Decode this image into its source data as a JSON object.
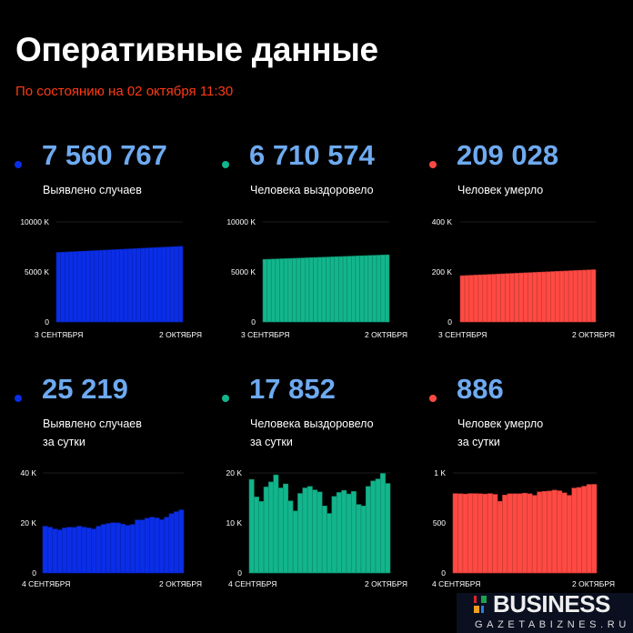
{
  "header": {
    "title": "Оперативные данные",
    "subtitle": "По состоянию на 02 октября 11:30"
  },
  "colors": {
    "cases": "#0a2ee8",
    "recovered": "#12b58c",
    "deaths": "#ff4a43",
    "number": "#6eaaf0",
    "subtitle": "#ff3a12"
  },
  "stats": [
    {
      "value": "7 560 767",
      "label1": "Выявлено случаев",
      "label2": ""
    },
    {
      "value": "6 710 574",
      "label1": "Человека выздоровело",
      "label2": ""
    },
    {
      "value": "209 028",
      "label1": "Человек умерло",
      "label2": ""
    },
    {
      "value": "25 219",
      "label1": "Выявлено случаев",
      "label2": "за сутки"
    },
    {
      "value": "17 852",
      "label1": "Человека выздоровело",
      "label2": "за сутки"
    },
    {
      "value": "886",
      "label1": "Человек умерло",
      "label2": "за сутки"
    }
  ],
  "chart_data": [
    {
      "type": "bar",
      "color": "#0a2ee8",
      "ylim": [
        0,
        10000
      ],
      "unit": "K",
      "yticks": [
        "0",
        "5000 K",
        "10000 K"
      ],
      "ytick_values": [
        0,
        5000,
        10000
      ],
      "x_start_label": "3 СЕНТЯБРЯ",
      "x_end_label": "2 ОКТЯБРЯ",
      "values": [
        6950,
        6971,
        6992,
        7013,
        7034,
        7055,
        7076,
        7097,
        7118,
        7139,
        7160,
        7181,
        7202,
        7223,
        7244,
        7265,
        7286,
        7307,
        7328,
        7349,
        7370,
        7391,
        7412,
        7433,
        7454,
        7475,
        7496,
        7517,
        7538,
        7561
      ]
    },
    {
      "type": "bar",
      "color": "#12b58c",
      "ylim": [
        0,
        10000
      ],
      "unit": "K",
      "yticks": [
        "0",
        "5000 K",
        "10000 K"
      ],
      "ytick_values": [
        0,
        5000,
        10000
      ],
      "x_start_label": "3 СЕНТЯБРЯ",
      "x_end_label": "2 ОКТЯБРЯ",
      "values": [
        6255,
        6271,
        6286,
        6302,
        6318,
        6334,
        6349,
        6365,
        6381,
        6396,
        6412,
        6428,
        6444,
        6459,
        6475,
        6491,
        6506,
        6522,
        6538,
        6553,
        6569,
        6585,
        6601,
        6616,
        6632,
        6648,
        6663,
        6679,
        6695,
        6711
      ]
    },
    {
      "type": "bar",
      "color": "#ff4a43",
      "ylim": [
        0,
        400
      ],
      "unit": "K",
      "yticks": [
        "0",
        "200 K",
        "400 K"
      ],
      "ytick_values": [
        0,
        200,
        400
      ],
      "x_start_label": "3 СЕНТЯБРЯ",
      "x_end_label": "2 ОКТЯБРЯ",
      "values": [
        185.0,
        185.8,
        186.7,
        187.5,
        188.3,
        189.1,
        190.0,
        190.8,
        191.6,
        192.4,
        193.3,
        194.1,
        194.9,
        195.8,
        196.6,
        197.4,
        198.2,
        199.1,
        199.9,
        200.7,
        201.6,
        202.4,
        203.2,
        204.0,
        204.9,
        205.7,
        206.5,
        207.3,
        208.2,
        209.0
      ]
    },
    {
      "type": "bar",
      "color": "#0a2ee8",
      "ylim": [
        0,
        40
      ],
      "unit": "K",
      "yticks": [
        "0",
        "20 K",
        "40 K"
      ],
      "ytick_values": [
        0,
        20,
        40
      ],
      "x_start_label": "4 СЕНТЯБРЯ",
      "x_end_label": "2 ОКТЯБРЯ",
      "values": [
        18.7,
        18.3,
        17.6,
        17.2,
        18.0,
        18.3,
        18.2,
        18.7,
        18.3,
        18.0,
        17.6,
        18.7,
        19.4,
        19.8,
        20.1,
        20.0,
        19.5,
        19.0,
        19.4,
        21.2,
        21.2,
        21.9,
        22.3,
        22.0,
        21.3,
        22.3,
        23.7,
        24.5,
        25.2
      ]
    },
    {
      "type": "bar",
      "color": "#12b58c",
      "ylim": [
        0,
        20
      ],
      "unit": "K",
      "yticks": [
        "0",
        "10 K",
        "20 K"
      ],
      "ytick_values": [
        0,
        10,
        20
      ],
      "x_start_label": "4 СЕНТЯБРЯ",
      "x_end_label": "2 ОКТЯБРЯ",
      "values": [
        18.7,
        15.2,
        14.3,
        17.2,
        18.2,
        19.6,
        17.0,
        17.8,
        14.4,
        12.4,
        15.9,
        17.0,
        17.3,
        16.6,
        16.2,
        13.4,
        11.9,
        15.3,
        16.1,
        16.5,
        15.8,
        16.3,
        13.7,
        13.4,
        17.3,
        18.4,
        18.8,
        19.9,
        17.9
      ]
    },
    {
      "type": "bar",
      "color": "#ff4a43",
      "ylim": [
        0,
        1000
      ],
      "unit": "",
      "yticks": [
        "0",
        "500",
        "1 K"
      ],
      "ytick_values": [
        0,
        500,
        1000
      ],
      "x_start_label": "4 СЕНТЯБРЯ",
      "x_end_label": "2 ОКТЯБРЯ",
      "values": [
        794,
        792,
        789,
        794,
        794,
        792,
        789,
        794,
        786,
        716,
        779,
        792,
        792,
        792,
        798,
        792,
        776,
        810,
        816,
        819,
        828,
        822,
        801,
        776,
        849,
        855,
        867,
        885,
        886
      ]
    }
  ],
  "watermark": {
    "brand": "BUSINESS",
    "site": "GAZETABIZNES.RU"
  }
}
